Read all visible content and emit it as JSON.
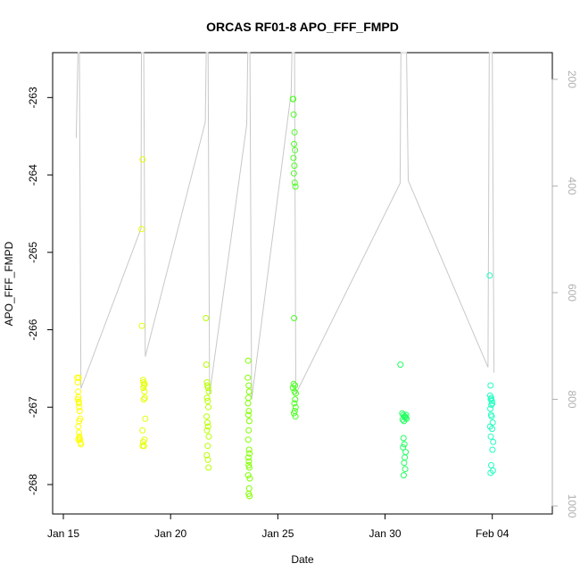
{
  "chart_data": {
    "type": "scatter",
    "title": "ORCAS RF01-8 APO_FFF_FMPD",
    "xlabel": "Date",
    "ylabel": "APO_FFF_FMPD",
    "x_ticks": [
      "Jan 15",
      "Jan 20",
      "Jan 25",
      "Jan 30",
      "Feb 04"
    ],
    "x_tick_days": [
      15,
      20,
      25,
      30,
      35
    ],
    "xlim": [
      14.5,
      37.8
    ],
    "y_ticks": [
      -263,
      -264,
      -265,
      -266,
      -267,
      -268
    ],
    "ylim": [
      -268.38,
      -262.42
    ],
    "y2_ticks": [
      "200",
      "400",
      "600",
      "800",
      "1000"
    ],
    "y2_tick_values": [
      200,
      400,
      600,
      800,
      1000
    ],
    "y2lim": [
      1015,
      150
    ],
    "series": [
      {
        "color": "#ffff00",
        "x": [
          15.65,
          15.67,
          15.69,
          15.7,
          15.72,
          15.74,
          15.76,
          15.78,
          15.7,
          15.73,
          15.75,
          15.77,
          15.8,
          15.82,
          15.72,
          15.74,
          15.76,
          15.7,
          15.68,
          15.71
        ],
        "y": [
          -266.62,
          -266.68,
          -266.8,
          -266.87,
          -266.93,
          -267.0,
          -267.05,
          -267.15,
          -267.25,
          -267.33,
          -267.38,
          -267.42,
          -267.46,
          -267.48,
          -266.95,
          -267.18,
          -267.4,
          -267.42,
          -266.9,
          -266.62
        ]
      },
      {
        "color": "#e6ff00",
        "x": [
          18.7,
          18.65,
          18.66,
          18.72,
          18.74,
          18.76,
          18.73,
          18.78,
          18.8,
          18.75,
          18.69,
          18.82,
          18.7,
          18.78,
          18.72,
          18.76,
          18.79
        ],
        "y": [
          -263.8,
          -264.7,
          -265.95,
          -266.65,
          -266.68,
          -266.72,
          -266.75,
          -266.8,
          -266.88,
          -266.9,
          -267.3,
          -267.15,
          -267.5,
          -267.42,
          -267.45,
          -267.5,
          -266.7
        ]
      },
      {
        "color": "#b8ff00",
        "x": [
          21.65,
          21.67,
          21.7,
          21.72,
          21.75,
          21.78,
          21.7,
          21.73,
          21.76,
          21.68,
          21.72,
          21.75,
          21.7,
          21.78,
          21.73,
          21.69,
          21.74,
          21.77
        ],
        "y": [
          -265.85,
          -266.45,
          -266.68,
          -266.72,
          -266.75,
          -266.8,
          -266.88,
          -266.92,
          -267.0,
          -267.12,
          -267.2,
          -267.25,
          -267.3,
          -267.38,
          -267.5,
          -267.62,
          -267.68,
          -267.78
        ]
      },
      {
        "color": "#82ff00",
        "x": [
          23.62,
          23.6,
          23.64,
          23.66,
          23.63,
          23.61,
          23.65,
          23.67,
          23.64,
          23.62,
          23.66,
          23.68,
          23.63,
          23.65,
          23.64,
          23.67,
          23.62,
          23.69,
          23.66,
          23.64,
          23.68,
          23.63
        ],
        "y": [
          -266.4,
          -266.62,
          -266.72,
          -266.8,
          -266.88,
          -266.95,
          -267.05,
          -267.18,
          -267.3,
          -267.42,
          -267.55,
          -267.6,
          -267.65,
          -267.7,
          -267.75,
          -267.78,
          -267.88,
          -267.92,
          -268.05,
          -268.12,
          -268.15,
          -267.1
        ]
      },
      {
        "color": "#4cff22",
        "x": [
          25.7,
          25.72,
          25.74,
          25.78,
          25.76,
          25.8,
          25.73,
          25.77,
          25.75,
          25.79,
          25.82,
          25.76,
          25.74,
          25.8,
          25.7,
          25.78,
          25.84,
          25.81,
          25.77,
          25.83,
          25.79,
          25.75,
          25.82
        ],
        "y": [
          -263.02,
          -263.02,
          -263.22,
          -263.45,
          -263.6,
          -263.68,
          -263.78,
          -263.88,
          -263.98,
          -264.1,
          -264.15,
          -265.85,
          -266.7,
          -266.72,
          -266.75,
          -266.8,
          -266.82,
          -266.9,
          -266.95,
          -267.0,
          -267.05,
          -267.08,
          -267.12
        ]
      },
      {
        "color": "#22ff60",
        "x": [
          30.72,
          30.8,
          30.85,
          30.9,
          30.95,
          31.0,
          30.82,
          30.88,
          30.93,
          30.98,
          30.86,
          30.9,
          30.84,
          30.96,
          30.92,
          30.89,
          30.94,
          30.87
        ],
        "y": [
          -266.45,
          -267.08,
          -267.1,
          -267.12,
          -267.14,
          -267.15,
          -267.16,
          -267.18,
          -267.12,
          -267.1,
          -267.4,
          -267.48,
          -267.52,
          -267.58,
          -267.65,
          -267.72,
          -267.8,
          -267.88
        ]
      },
      {
        "color": "#22ffc0",
        "x": [
          34.88,
          34.92,
          34.9,
          34.95,
          34.93,
          34.98,
          35.0,
          34.96,
          34.91,
          34.94,
          34.97,
          35.02,
          34.9,
          34.99,
          34.93,
          35.04,
          35.01,
          34.95,
          34.92,
          35.03
        ],
        "y": [
          -265.3,
          -266.72,
          -266.85,
          -266.88,
          -266.9,
          -266.92,
          -266.95,
          -266.97,
          -267.02,
          -267.1,
          -267.12,
          -267.2,
          -267.25,
          -267.28,
          -267.38,
          -267.45,
          -267.55,
          -267.75,
          -267.85,
          -267.82
        ]
      }
    ],
    "altitude_series": {
      "color": "#c8c8c8",
      "x": [
        15.6,
        15.68,
        15.75,
        15.82,
        18.62,
        18.64,
        18.75,
        18.82,
        21.62,
        21.66,
        21.75,
        21.82,
        23.55,
        23.6,
        23.7,
        23.78,
        25.62,
        25.66,
        25.78,
        25.84,
        30.7,
        30.74,
        31.0,
        31.08,
        34.8,
        34.86,
        35.0,
        35.08
      ],
      "y": [
        310,
        150,
        150,
        780,
        480,
        150,
        150,
        720,
        280,
        150,
        150,
        790,
        285,
        150,
        150,
        800,
        225,
        150,
        150,
        790,
        395,
        150,
        150,
        390,
        740,
        150,
        150,
        750
      ]
    }
  }
}
